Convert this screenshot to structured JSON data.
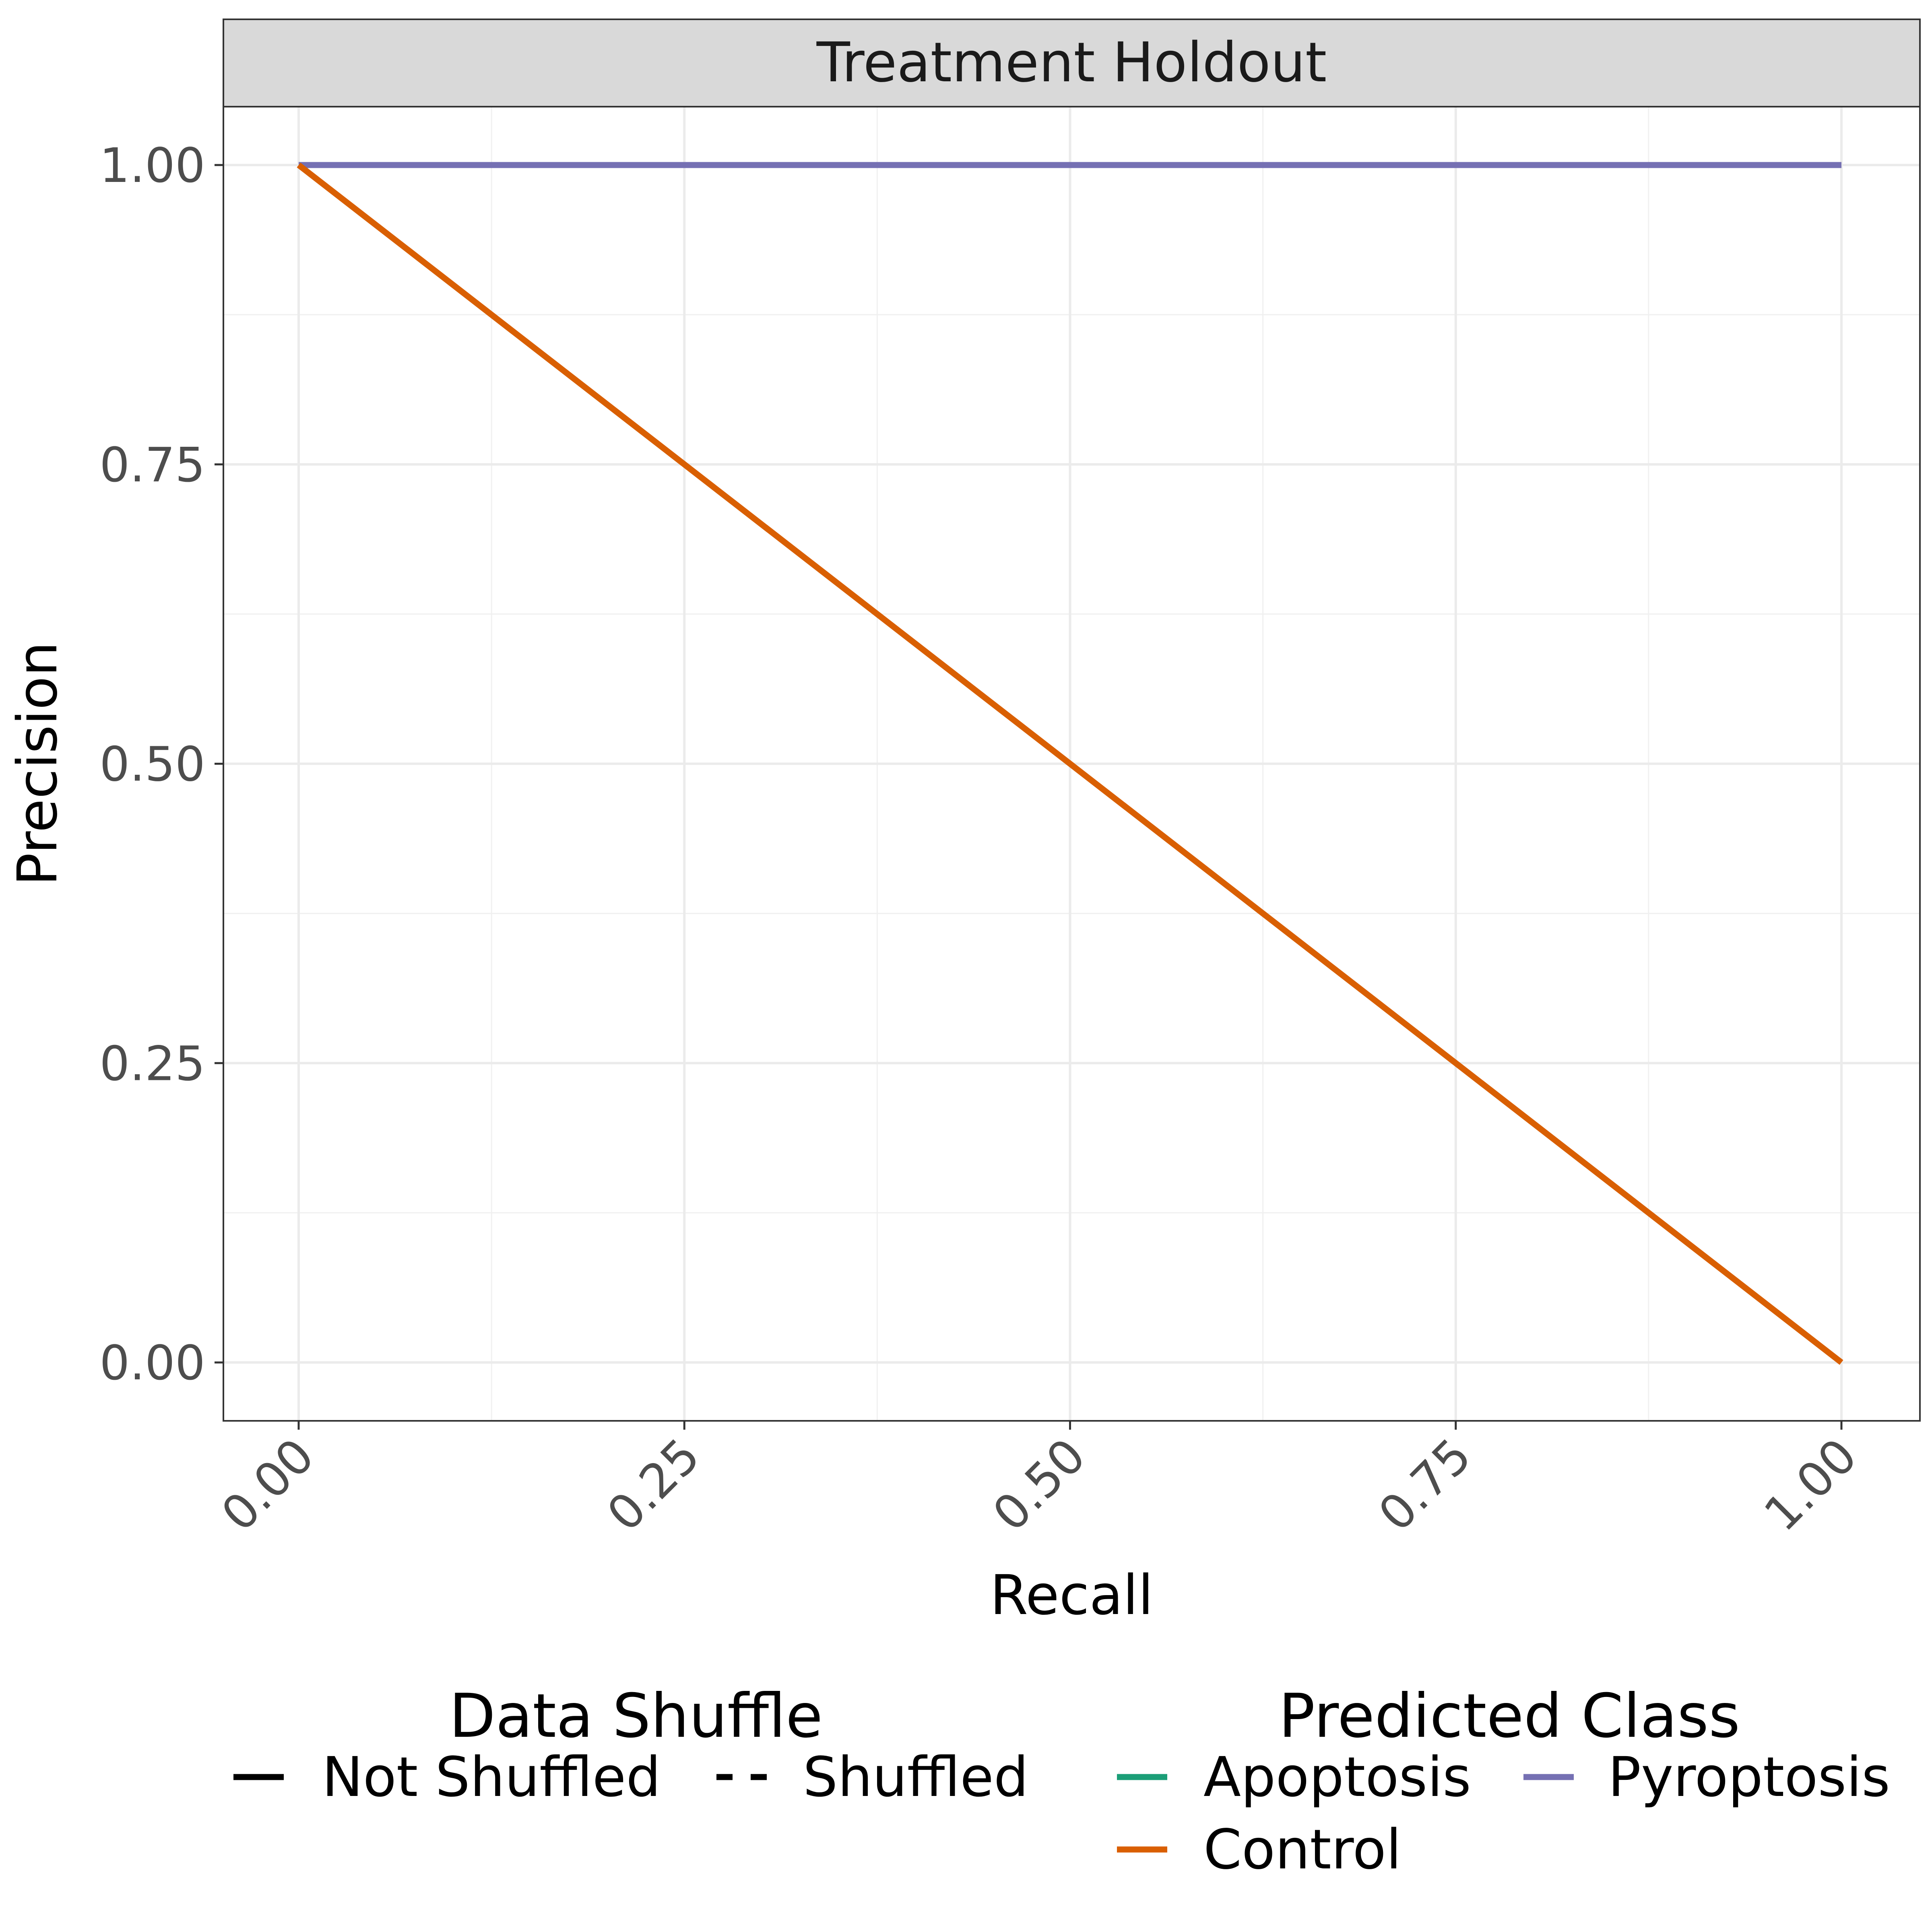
{
  "chart_data": {
    "type": "line",
    "facet_title": "Treatment Holdout",
    "xlabel": "Recall",
    "ylabel": "Precision",
    "xlim": [
      0,
      1
    ],
    "ylim": [
      0,
      1
    ],
    "x_ticks": [
      "0.00",
      "0.25",
      "0.50",
      "0.75",
      "1.00"
    ],
    "y_ticks": [
      "0.00",
      "0.25",
      "0.50",
      "0.75",
      "1.00"
    ],
    "x_tick_values": [
      0,
      0.25,
      0.5,
      0.75,
      1
    ],
    "y_tick_values": [
      0,
      0.25,
      0.5,
      0.75,
      1
    ],
    "grid": true,
    "legend_position": "bottom",
    "legends": [
      {
        "title": "Data Shuffle",
        "entries": [
          {
            "label": "Not Shuffled",
            "linetype": "solid",
            "color": "#000000"
          },
          {
            "label": "Shuffled",
            "linetype": "dashed",
            "color": "#000000"
          }
        ]
      },
      {
        "title": "Predicted Class",
        "entries": [
          {
            "label": "Apoptosis",
            "color": "#1B9E77"
          },
          {
            "label": "Control",
            "color": "#D95F02"
          },
          {
            "label": "Pyroptosis",
            "color": "#7570B3"
          }
        ]
      }
    ],
    "series": [
      {
        "name": "Pyroptosis",
        "shuffle": "Not Shuffled",
        "color": "#7570B3",
        "x": [
          0,
          1
        ],
        "y": [
          1,
          1
        ]
      },
      {
        "name": "Control",
        "shuffle": "Not Shuffled",
        "color": "#D95F02",
        "x": [
          0,
          1
        ],
        "y": [
          1,
          0
        ]
      }
    ]
  }
}
